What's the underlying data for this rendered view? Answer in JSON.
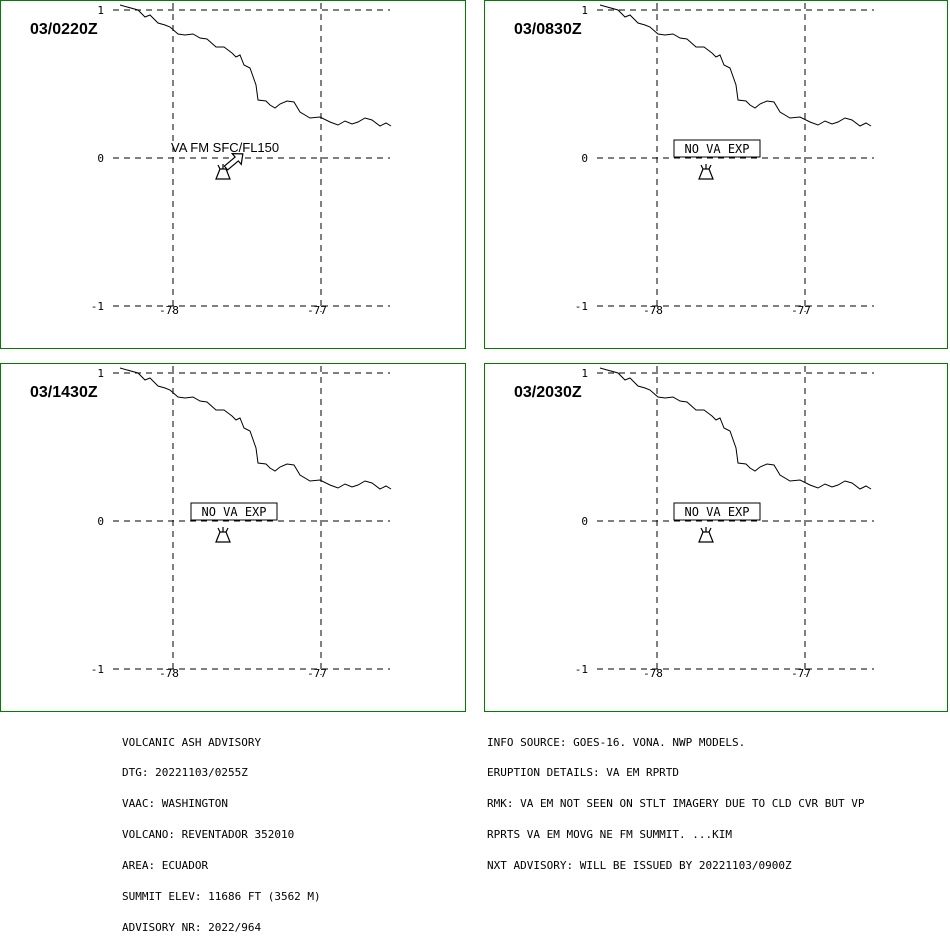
{
  "panels": [
    {
      "time": "03/0220Z",
      "annotation": "VA FM SFC/FL150",
      "annotation_boxed": false,
      "arrow": true
    },
    {
      "time": "03/0830Z",
      "annotation": "NO VA EXP",
      "annotation_boxed": true,
      "arrow": false
    },
    {
      "time": "03/1430Z",
      "annotation": "NO VA EXP",
      "annotation_boxed": true,
      "arrow": false
    },
    {
      "time": "03/2030Z",
      "annotation": "NO VA EXP",
      "annotation_boxed": true,
      "arrow": false
    }
  ],
  "grid": {
    "lat_labels": [
      "1",
      "0",
      "-1"
    ],
    "lon_labels": [
      "-78",
      "-77"
    ]
  },
  "colors": {
    "panel_border": "#008000",
    "ink": "#000000"
  },
  "icons": {
    "volcano": "volcano-symbol-icon",
    "arrow": "ash-movement-arrow-icon"
  },
  "advisory_left": [
    "VOLCANIC ASH ADVISORY",
    "DTG: 20221103/0255Z",
    "VAAC: WASHINGTON",
    "VOLCANO: REVENTADOR 352010",
    "AREA: ECUADOR",
    "SUMMIT ELEV: 11686 FT (3562 M)",
    "ADVISORY NR: 2022/964"
  ],
  "advisory_right": [
    "INFO SOURCE: GOES-16. VONA. NWP MODELS.",
    "ERUPTION DETAILS: VA EM RPRTD",
    "RMK: VA EM NOT SEEN ON STLT IMAGERY DUE TO CLD CVR BUT VP",
    "RPRTS VA EM MOVG NE FM SUMMIT. ...KIM",
    "NXT ADVISORY: WILL BE ISSUED BY 20221103/0900Z"
  ]
}
